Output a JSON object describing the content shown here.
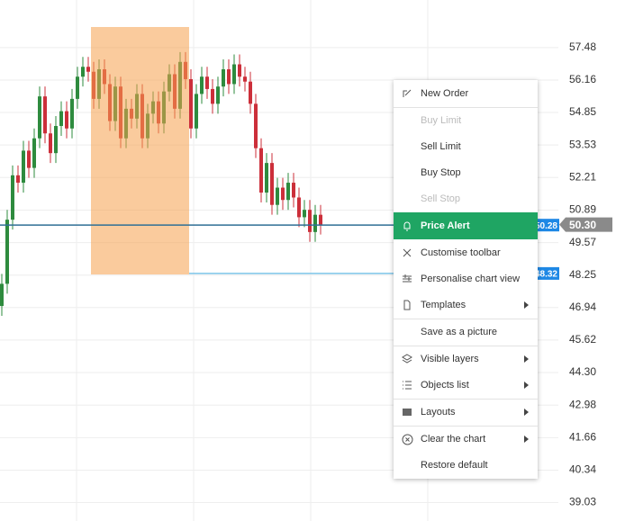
{
  "chart_data": {
    "type": "candlestick",
    "ylim": [
      38.28,
      59.41
    ],
    "yticks": [
      57.48,
      56.16,
      54.85,
      53.53,
      52.21,
      50.89,
      49.57,
      48.25,
      46.94,
      45.62,
      {
        "value": 44.3,
        "label": "44.30"
      },
      42.98,
      41.66,
      40.34,
      39.03
    ],
    "grid": true,
    "up_color": "#2e8b3e",
    "down_color": "#cc2f3a",
    "open": [
      47.0,
      47.9,
      50.5,
      52.3,
      52.0,
      53.3,
      52.6,
      53.8,
      55.5,
      54.0,
      53.2,
      54.3,
      54.9,
      54.2,
      55.4,
      56.3,
      56.7,
      56.5,
      55.4,
      56.6,
      56.0,
      54.5,
      55.9,
      53.8,
      55.0,
      54.6,
      55.6,
      53.8,
      54.8,
      55.3,
      54.4,
      55.7,
      56.4,
      55.0,
      56.9,
      56.2,
      54.2,
      55.6,
      56.3,
      55.8,
      55.2,
      55.9,
      56.6,
      56.0,
      56.8,
      56.3,
      56.1,
      55.2,
      53.4,
      51.6,
      52.8,
      51.1,
      51.8,
      51.3,
      52.0,
      51.4,
      50.6,
      50.9,
      50.0,
      50.7
    ],
    "high": [
      48.3,
      50.9,
      52.7,
      52.7,
      53.7,
      53.7,
      54.2,
      55.9,
      55.9,
      54.4,
      54.7,
      55.3,
      55.3,
      55.8,
      56.7,
      57.1,
      57.1,
      56.9,
      57.0,
      57.0,
      56.4,
      56.3,
      56.3,
      55.4,
      55.4,
      56.0,
      56.0,
      55.2,
      55.7,
      55.7,
      56.1,
      56.8,
      56.8,
      57.3,
      57.3,
      56.6,
      56.0,
      56.7,
      56.7,
      56.2,
      56.3,
      57.0,
      57.0,
      57.2,
      57.2,
      56.7,
      56.5,
      55.6,
      53.8,
      53.2,
      53.2,
      52.2,
      52.2,
      52.4,
      52.4,
      51.8,
      51.3,
      51.3,
      51.1,
      51.1
    ],
    "low": [
      46.6,
      47.5,
      50.1,
      51.6,
      51.6,
      52.2,
      52.2,
      53.4,
      53.6,
      52.8,
      52.8,
      53.9,
      53.8,
      53.8,
      55.0,
      55.9,
      56.1,
      55.0,
      55.0,
      55.6,
      54.1,
      54.1,
      53.4,
      53.4,
      54.2,
      54.2,
      53.4,
      53.4,
      54.4,
      54.0,
      54.0,
      55.3,
      54.6,
      54.6,
      55.8,
      53.8,
      53.8,
      55.2,
      55.4,
      54.8,
      54.8,
      55.5,
      55.6,
      55.6,
      55.9,
      55.7,
      54.8,
      53.0,
      51.2,
      51.2,
      50.7,
      50.7,
      50.9,
      50.9,
      51.0,
      50.2,
      50.2,
      49.6,
      49.6,
      49.9
    ],
    "close": [
      47.9,
      50.5,
      52.3,
      52.0,
      53.3,
      52.6,
      53.8,
      55.5,
      54.0,
      53.2,
      54.3,
      54.9,
      54.2,
      55.4,
      56.3,
      56.7,
      56.5,
      55.4,
      56.6,
      56.0,
      54.5,
      55.9,
      53.8,
      55.0,
      54.6,
      55.6,
      53.8,
      54.8,
      55.3,
      54.4,
      55.7,
      56.4,
      55.0,
      56.9,
      56.2,
      54.2,
      55.6,
      56.3,
      55.8,
      55.2,
      55.9,
      56.6,
      56.0,
      56.8,
      56.3,
      56.1,
      55.2,
      53.4,
      51.6,
      52.8,
      51.1,
      51.8,
      51.3,
      52.0,
      51.4,
      50.6,
      50.9,
      50.0,
      50.7,
      50.3
    ],
    "current_price": {
      "value": 50.3,
      "label": "50.30"
    },
    "levels": [
      50.28,
      48.32
    ]
  },
  "menu": {
    "items": [
      "New Order",
      "Buy Limit",
      "Sell Limit",
      "Buy Stop",
      "Sell Stop",
      "Price Alert",
      "Customise toolbar",
      "Personalise chart view",
      "Templates",
      "Save as a picture",
      "Visible layers",
      "Objects list",
      "Layouts",
      "Clear the chart",
      "Restore default"
    ]
  }
}
